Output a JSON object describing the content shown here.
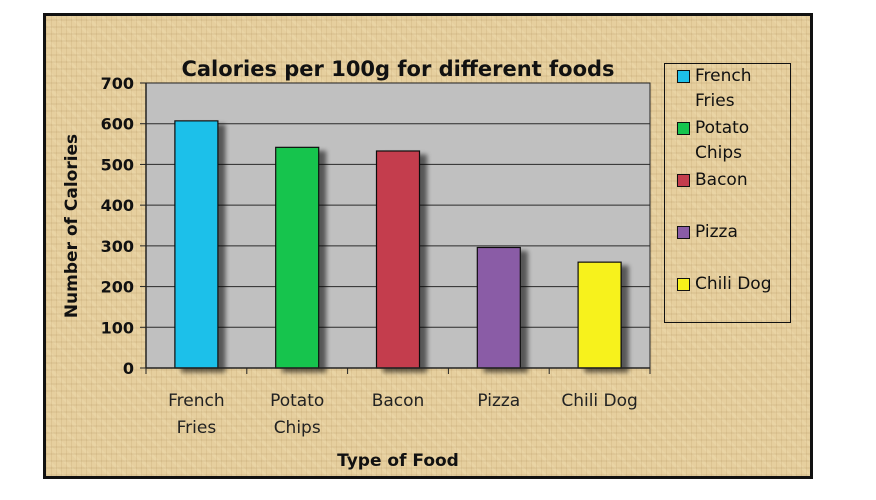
{
  "chart_data": {
    "type": "bar",
    "title": "Calories per 100g for different foods",
    "xlabel": "Type of Food",
    "ylabel": "Number of Calories",
    "categories": [
      "French Fries",
      "Potato Chips",
      "Bacon",
      "Pizza",
      "Chili Dog"
    ],
    "category_lines": [
      [
        "French",
        "Fries"
      ],
      [
        "Potato",
        "Chips"
      ],
      [
        "Bacon"
      ],
      [
        "Pizza"
      ],
      [
        "Chili Dog"
      ]
    ],
    "values": [
      607,
      542,
      533,
      296,
      260
    ],
    "ylim": [
      0,
      700
    ],
    "yticks": [
      "0",
      "100",
      "200",
      "300",
      "400",
      "500",
      "600",
      "700"
    ],
    "grid": true,
    "legend_position": "right",
    "colors": [
      "#1dc0ea",
      "#16c44e",
      "#c43d4d",
      "#8a5ca6",
      "#f7f21a"
    ],
    "legend": [
      {
        "label": "French Fries",
        "color": "#1dc0ea"
      },
      {
        "label": "Potato Chips",
        "color": "#16c44e"
      },
      {
        "label": "Bacon",
        "color": "#c43d4d"
      },
      {
        "label": "Pizza",
        "color": "#8a5ca6"
      },
      {
        "label": "Chili Dog",
        "color": "#f7f21a"
      }
    ]
  }
}
